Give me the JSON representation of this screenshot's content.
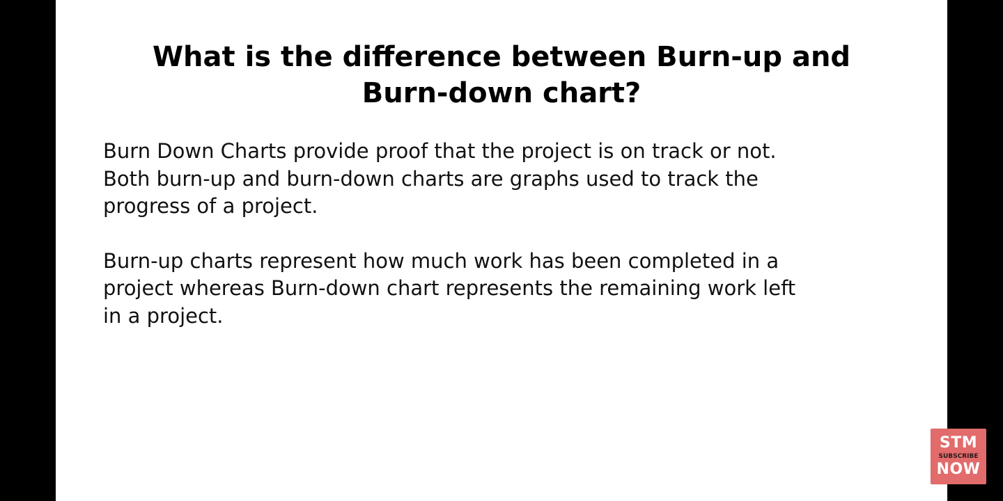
{
  "slide": {
    "title": "What is the difference between Burn-up and\nBurn-down chart?",
    "paragraphs": [
      "Burn Down Charts provide proof that the project is on track or not.\nBoth burn-up and burn-down charts are graphs used to track the\nprogress of a project.",
      "Burn-up charts represent how much work has been completed in a\nproject whereas Burn-down chart represents the remaining work left\nin a project."
    ]
  },
  "subscribe_badge": {
    "top": "STM",
    "middle": "SUBSCRIBE",
    "bottom": "NOW"
  },
  "colors": {
    "background": "#000000",
    "slide": "#ffffff",
    "badge": "#e26b6b"
  }
}
